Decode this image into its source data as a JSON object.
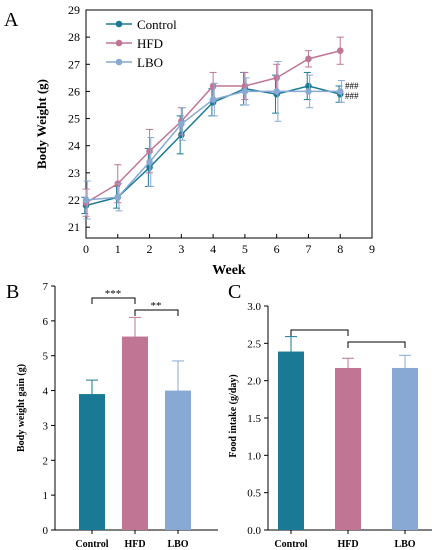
{
  "chart_data": [
    {
      "panel_label": "A",
      "type": "line",
      "xlabel": "Week",
      "ylabel": "Body Weight (g)",
      "xlim": [
        0,
        9
      ],
      "ylim": [
        20.6,
        29
      ],
      "x_ticks": [
        "0",
        "1",
        "2",
        "3",
        "4",
        "5",
        "6",
        "7",
        "8",
        "9"
      ],
      "y_ticks": [
        "21",
        "22",
        "23",
        "24",
        "25",
        "26",
        "27",
        "28",
        "29"
      ],
      "x": [
        0,
        1,
        2,
        3,
        4,
        5,
        6,
        7,
        8
      ],
      "legend_position": "top-left",
      "annotations": [
        "###",
        "###"
      ],
      "series": [
        {
          "name": "Control",
          "color": "#1a7a96",
          "marker": "circle",
          "values": [
            21.8,
            22.1,
            23.2,
            24.4,
            25.6,
            26.1,
            25.9,
            26.2,
            25.9
          ],
          "errors": [
            0.3,
            0.4,
            0.7,
            0.7,
            0.5,
            0.6,
            0.7,
            0.5,
            0.3
          ]
        },
        {
          "name": "HFD",
          "color": "#c07595",
          "marker": "circle",
          "values": [
            21.9,
            22.6,
            23.8,
            24.9,
            26.2,
            26.2,
            26.5,
            27.2,
            27.5
          ],
          "errors": [
            0.5,
            0.7,
            0.8,
            0.5,
            0.5,
            0.5,
            0.5,
            0.3,
            0.5
          ]
        },
        {
          "name": "LBO",
          "color": "#88a9d3",
          "marker": "circle",
          "values": [
            22.0,
            22.1,
            23.4,
            24.8,
            25.7,
            26.0,
            26.0,
            26.0,
            26.0
          ],
          "errors": [
            0.7,
            0.5,
            0.9,
            0.6,
            0.6,
            0.5,
            1.1,
            0.6,
            0.4
          ]
        }
      ]
    },
    {
      "panel_label": "B",
      "type": "bar",
      "categories": [
        "Control",
        "HFD",
        "LBO"
      ],
      "values": [
        3.9,
        5.55,
        4.0
      ],
      "errors": [
        0.4,
        0.55,
        0.85
      ],
      "colors": [
        "#1a7a96",
        "#c07595",
        "#88a9d3"
      ],
      "ylabel": "Body weight gain (g)",
      "ylim": [
        0,
        7
      ],
      "y_ticks": [
        "0",
        "1",
        "2",
        "3",
        "4",
        "5",
        "6",
        "7"
      ],
      "significance": [
        {
          "from": 0,
          "to": 1,
          "label": "***"
        },
        {
          "from": 1,
          "to": 2,
          "label": "**"
        }
      ]
    },
    {
      "panel_label": "C",
      "type": "bar",
      "categories": [
        "Control",
        "HFD",
        "LBO"
      ],
      "values": [
        2.39,
        2.17,
        2.17
      ],
      "errors": [
        0.2,
        0.13,
        0.17
      ],
      "colors": [
        "#1a7a96",
        "#c07595",
        "#88a9d3"
      ],
      "ylabel": "Food intake (g/day)",
      "ylim": [
        0,
        3.0
      ],
      "y_ticks": [
        "0.0",
        "0.5",
        "1.0",
        "1.5",
        "2.0",
        "2.5",
        "3.0"
      ],
      "brackets": [
        {
          "from": 0,
          "to": 1
        },
        {
          "from": 1,
          "to": 2
        }
      ]
    }
  ]
}
